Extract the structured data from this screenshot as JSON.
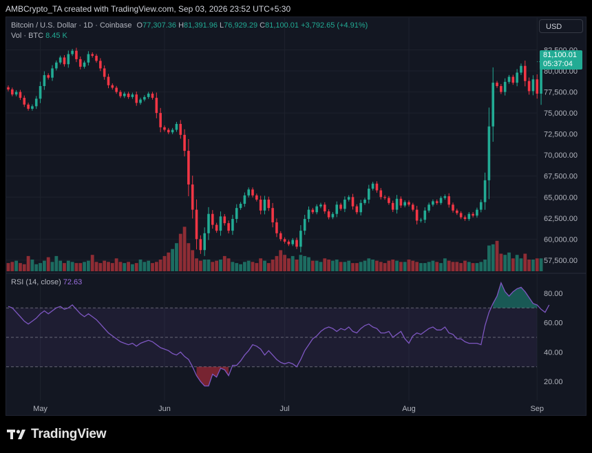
{
  "header": {
    "credit": "AMBCrypto_TA created with TradingView.com, Sep 03, 2026 23:52 UTC+5:30"
  },
  "legend": {
    "symbol": "Bitcoin / U.S. Dollar · 1D · Coinbase",
    "o_label": "O",
    "open": "77,307.36",
    "h_label": "H",
    "high": "81,391.96",
    "l_label": "L",
    "low": "76,929.29",
    "c_label": "C",
    "close": "81,100.01",
    "change": "+3,792.65 (+4.91%)"
  },
  "volume": {
    "label": "Vol · BTC",
    "value": "8.45 K"
  },
  "rsi": {
    "label": "RSI (14, close)",
    "value": "72.63"
  },
  "currency": "USD",
  "price_tag": {
    "price": "81,100.01",
    "countdown": "05:37:04"
  },
  "brand": {
    "name": "TradingView"
  },
  "colors": {
    "up": "#22ab94",
    "down": "#f23645",
    "rsi": "#7e57c2",
    "background": "#131722"
  },
  "chart_data": [
    {
      "type": "candlestick",
      "title": "Bitcoin / U.S. Dollar · 1D · Coinbase",
      "y_ticks": [
        "82,500.00",
        "80,000.00",
        "77,500.00",
        "75,000.00",
        "72,500.00",
        "70,000.00",
        "67,500.00",
        "65,000.00",
        "62,500.00",
        "60,000.00",
        "57,500.00"
      ],
      "y_tick_values": [
        82500,
        80000,
        77500,
        75000,
        72500,
        70000,
        67500,
        65000,
        62500,
        60000,
        57500
      ],
      "ylim": [
        56100,
        83850
      ],
      "x_ticks": [
        "May",
        "Jun",
        "Jul",
        "Aug",
        "Sep"
      ],
      "x_tick_index": [
        8,
        39,
        69,
        100,
        132
      ],
      "closes": [
        77800,
        77200,
        77500,
        76800,
        76000,
        75500,
        75800,
        76700,
        78200,
        79500,
        79200,
        80300,
        81000,
        81600,
        80800,
        82000,
        82400,
        81400,
        80500,
        81000,
        82000,
        81800,
        81200,
        80300,
        79300,
        78300,
        78000,
        77500,
        77000,
        77300,
        76900,
        77200,
        76200,
        76600,
        76900,
        77300,
        76800,
        75000,
        73300,
        73000,
        72700,
        73000,
        73700,
        72400,
        70500,
        66500,
        63500,
        60000,
        58700,
        60700,
        63000,
        61700,
        61000,
        62700,
        61900,
        61000,
        62400,
        63700,
        64200,
        65200,
        65900,
        65200,
        64700,
        63400,
        64700,
        63700,
        62000,
        60700,
        60000,
        59700,
        59400,
        59900,
        59100,
        61000,
        62400,
        63500,
        63200,
        63900,
        64100,
        63300,
        62600,
        63000,
        64100,
        63600,
        64700,
        65000,
        63900,
        63200,
        64300,
        64700,
        66000,
        66600,
        65800,
        65000,
        64900,
        64300,
        63500,
        64800,
        64000,
        64400,
        64100,
        63500,
        62200,
        62300,
        63400,
        64100,
        64500,
        64300,
        64900,
        65100,
        64100,
        63400,
        63100,
        62600,
        62400,
        63000,
        62800,
        63500,
        64400,
        67000,
        73400,
        78600,
        78200,
        77500,
        78700,
        79300,
        78600,
        79800,
        80600,
        78800,
        77600,
        79000,
        77300,
        81100
      ],
      "volume": {
        "label": "Vol · BTC",
        "current": 8.45,
        "relative": [
          0.7,
          0.8,
          0.9,
          0.7,
          0.6,
          1.3,
          1.0,
          0.6,
          0.7,
          0.9,
          1.2,
          0.8,
          1.3,
          0.9,
          0.7,
          0.9,
          0.8,
          0.7,
          0.7,
          0.8,
          0.9,
          1.4,
          0.8,
          0.7,
          0.9,
          0.8,
          0.7,
          1.1,
          0.8,
          0.7,
          0.8,
          0.6,
          0.7,
          1.0,
          0.8,
          0.9,
          0.7,
          0.8,
          1.0,
          1.3,
          1.6,
          1.9,
          2.4,
          3.2,
          3.8,
          2.4,
          1.8,
          1.1,
          0.9,
          1.0,
          1.0,
          0.8,
          0.9,
          1.0,
          1.3,
          1.1,
          0.8,
          0.7,
          0.6,
          0.8,
          0.9,
          0.8,
          0.7,
          1.1,
          0.9,
          0.7,
          1.0,
          1.3,
          1.8,
          1.4,
          1.1,
          1.3,
          1.0,
          1.4,
          1.3,
          1.2,
          0.9,
          0.9,
          0.8,
          1.1,
          1.0,
          0.9,
          1.0,
          0.8,
          0.8,
          0.9,
          0.7,
          0.7,
          0.8,
          0.9,
          1.1,
          1.0,
          0.9,
          0.8,
          0.7,
          0.9,
          1.0,
          0.9,
          0.8,
          0.8,
          1.0,
          0.9,
          0.8,
          0.7,
          0.7,
          0.8,
          0.9,
          0.8,
          0.7,
          1.1,
          0.9,
          0.8,
          0.8,
          0.7,
          0.9,
          0.8,
          0.7,
          0.7,
          0.8,
          1.0,
          2.2,
          2.3,
          2.6,
          1.5,
          1.4,
          1.6,
          1.1,
          1.4,
          1.1,
          1.5,
          1.0,
          1.0,
          1.1,
          1.1
        ]
      }
    },
    {
      "type": "line",
      "title": "RSI (14, close)",
      "y_ticks": [
        "80.00",
        "60.00",
        "40.00",
        "20.00"
      ],
      "y_tick_values": [
        80,
        60,
        40,
        20
      ],
      "ylim": [
        7,
        93
      ],
      "levels": {
        "upper": 70,
        "middle": 50,
        "lower": 30
      },
      "values": [
        71,
        70,
        67,
        64,
        61,
        59,
        61,
        63,
        66,
        68,
        66,
        68,
        70,
        71,
        69,
        70,
        72,
        69,
        66,
        64,
        66,
        64,
        62,
        59,
        56,
        53,
        51,
        49,
        47,
        46,
        45,
        46,
        44,
        46,
        47,
        48,
        47,
        45,
        43,
        42,
        41,
        39,
        38,
        40,
        37,
        35,
        30,
        24,
        20,
        17,
        17,
        25,
        23,
        29,
        28,
        24,
        31,
        31,
        34,
        38,
        41,
        45,
        44,
        42,
        38,
        41,
        38,
        35,
        33,
        32,
        33,
        32,
        30,
        35,
        41,
        45,
        49,
        51,
        54,
        56,
        57,
        56,
        54,
        56,
        55,
        57,
        54,
        53,
        56,
        58,
        59,
        57,
        56,
        53,
        53,
        54,
        50,
        52,
        54,
        49,
        46,
        51,
        53,
        52,
        54,
        56,
        57,
        55,
        55,
        57,
        53,
        52,
        49,
        49,
        47,
        46,
        46,
        46,
        45,
        58,
        67,
        73,
        78,
        87,
        81,
        78,
        81,
        83,
        84,
        81,
        77,
        73,
        72,
        69,
        67,
        72
      ]
    }
  ]
}
